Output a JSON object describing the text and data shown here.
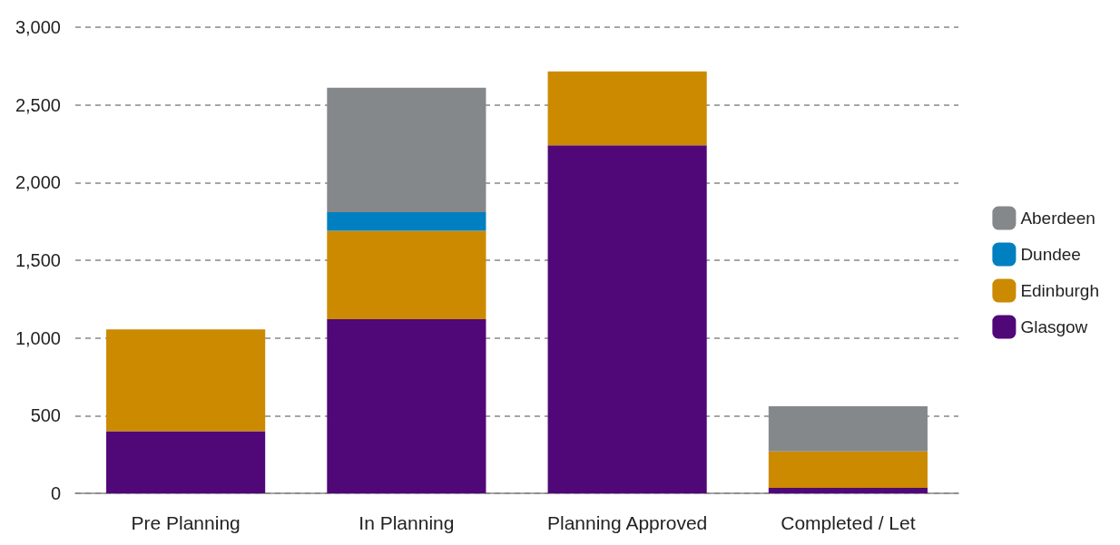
{
  "chart_data": {
    "type": "bar",
    "stacked": true,
    "categories": [
      "Pre Planning",
      "In Planning",
      "Planning Approved",
      "Completed / Let"
    ],
    "series": [
      {
        "name": "Glasgow",
        "color": "#500778",
        "values": [
          400,
          1120,
          2240,
          35
        ]
      },
      {
        "name": "Edinburgh",
        "color": "#cc8a00",
        "values": [
          655,
          570,
          475,
          235
        ]
      },
      {
        "name": "Dundee",
        "color": "#0080c0",
        "values": [
          null,
          120,
          null,
          null
        ]
      },
      {
        "name": "Aberdeen",
        "color": "#85888b",
        "values": [
          null,
          800,
          null,
          290
        ]
      }
    ],
    "ylim": [
      0,
      3000
    ],
    "yticks": [
      0,
      500,
      {
        "value": 1000,
        "label": "1,000"
      },
      {
        "value": 1500,
        "label": "1,500"
      },
      {
        "value": 2000,
        "label": "2,000"
      },
      {
        "value": 2500,
        "label": "2,500"
      },
      {
        "value": 3000,
        "label": "3,000"
      }
    ],
    "grid": "y",
    "legend": "right"
  }
}
